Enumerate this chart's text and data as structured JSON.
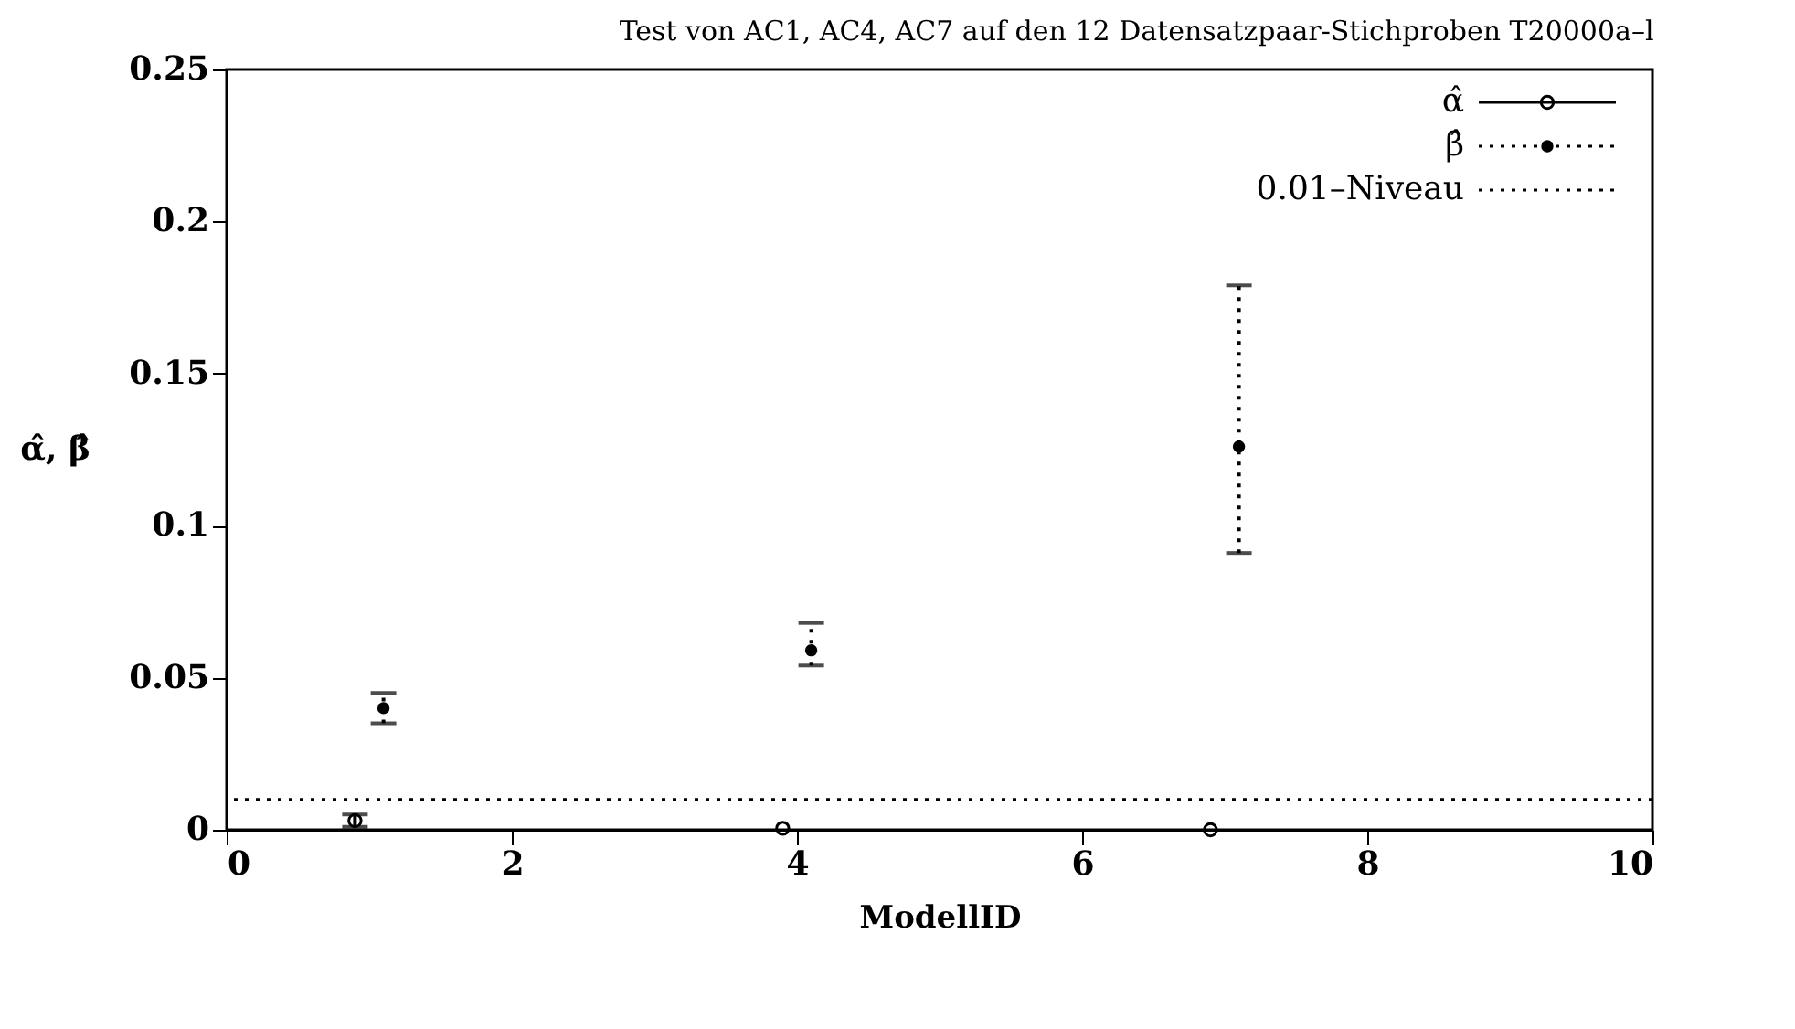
{
  "chart_data": {
    "type": "scatter",
    "title": "Test von AC1, AC4, AC7 auf den 12 Datensatzpaar-Stichproben T20000a–l",
    "xlabel": "ModellID",
    "ylabel": "α̂, β̂",
    "series": [
      {
        "name": "α̂",
        "color": "#000000",
        "x": [
          0.9,
          3.9,
          6.9
        ],
        "values": [
          0.003,
          0.0005,
          0
        ],
        "errors": [
          [
            0.001,
            0.005
          ],
          null,
          null
        ],
        "line_style": "solid",
        "marker": "circle"
      },
      {
        "name": "β̂",
        "color": "#000000",
        "x": [
          1.1,
          4.1,
          7.1
        ],
        "values": [
          0.04,
          0.059,
          0.126
        ],
        "errors": [
          [
            0.035,
            0.045
          ],
          [
            0.054,
            0.068
          ],
          [
            0.091,
            0.179
          ]
        ],
        "line_style": "dotted",
        "marker": "circle"
      }
    ],
    "ref_lines": [
      {
        "axis": "y",
        "value": 0.01,
        "label": "0.01–Niveau",
        "line_style": "dotted",
        "color": "#000000"
      }
    ],
    "xlim": [
      0,
      10
    ],
    "xticks": [
      0,
      2,
      4,
      6,
      8,
      10
    ],
    "ylim": [
      0,
      0.25
    ],
    "yticks": [
      0,
      0.05,
      0.1,
      0.15,
      0.2,
      0.25
    ],
    "grid": false,
    "legend": "top right"
  }
}
